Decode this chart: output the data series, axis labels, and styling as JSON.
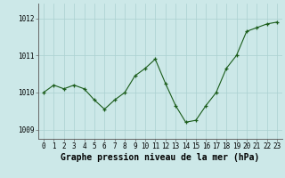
{
  "x": [
    0,
    1,
    2,
    3,
    4,
    5,
    6,
    7,
    8,
    9,
    10,
    11,
    12,
    13,
    14,
    15,
    16,
    17,
    18,
    19,
    20,
    21,
    22,
    23
  ],
  "y": [
    1010.0,
    1010.2,
    1010.1,
    1010.2,
    1010.1,
    1009.8,
    1009.55,
    1009.8,
    1010.0,
    1010.45,
    1010.65,
    1010.9,
    1010.25,
    1009.65,
    1009.2,
    1009.25,
    1009.65,
    1010.0,
    1010.65,
    1011.0,
    1011.65,
    1011.75,
    1011.85,
    1011.9
  ],
  "line_color": "#1a5c1a",
  "marker_color": "#1a5c1a",
  "bg_color": "#cce8e8",
  "grid_color": "#aad0d0",
  "title": "Graphe pression niveau de la mer (hPa)",
  "ylim": [
    1008.75,
    1012.4
  ],
  "yticks": [
    1009,
    1010,
    1011,
    1012
  ],
  "xlim": [
    -0.5,
    23.5
  ],
  "xticks": [
    0,
    1,
    2,
    3,
    4,
    5,
    6,
    7,
    8,
    9,
    10,
    11,
    12,
    13,
    14,
    15,
    16,
    17,
    18,
    19,
    20,
    21,
    22,
    23
  ],
  "tick_fontsize": 5.5,
  "title_fontsize": 7.0,
  "title_fontweight": "bold"
}
